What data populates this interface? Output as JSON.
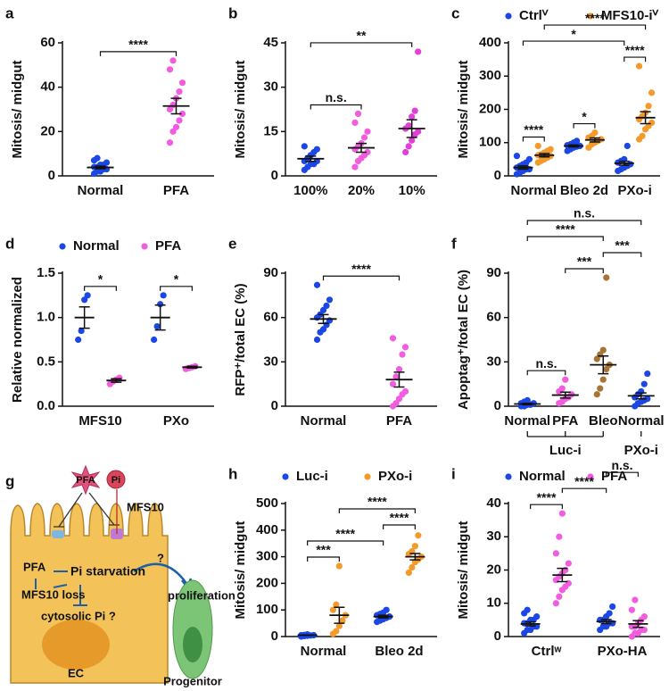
{
  "chart_data": [
    {
      "type": "dotplot",
      "panel": "a",
      "ylabel": "Mitosis/ midgut",
      "categories": [
        "Normal",
        "PFA"
      ],
      "ylim": [
        0,
        60
      ],
      "yticks": [
        0,
        20,
        40,
        60
      ],
      "series": [
        {
          "colors": [
            "#1a47e6",
            "#f25de0"
          ],
          "values": [
            [
              1,
              2,
              2,
              3,
              3,
              4,
              4,
              5,
              5,
              6,
              7,
              8
            ],
            [
              15,
              20,
              22,
              25,
              28,
              30,
              32,
              35,
              38,
              42,
              48,
              52
            ]
          ],
          "means": [
            3.8,
            31.5
          ],
          "sems": [
            0.6,
            3.5
          ]
        }
      ],
      "annotations": [
        {
          "text": "****",
          "from": 0,
          "to": 1
        }
      ]
    },
    {
      "type": "dotplot",
      "panel": "b",
      "ylabel": "Mitosis/ midgut",
      "categories": [
        "100%",
        "20%",
        "10%"
      ],
      "ylim": [
        0,
        45
      ],
      "yticks": [
        0,
        15,
        30,
        45
      ],
      "series": [
        {
          "colors": [
            "#1a47e6",
            "#f25de0",
            "#e23fd6"
          ],
          "values": [
            [
              2,
              3,
              4,
              4,
              5,
              5,
              6,
              7,
              8,
              9,
              10
            ],
            [
              3,
              5,
              6,
              7,
              8,
              9,
              10,
              11,
              13,
              15,
              18,
              21
            ],
            [
              8,
              10,
              12,
              14,
              15,
              16,
              17,
              20,
              22,
              42
            ]
          ],
          "means": [
            5.8,
            9.5,
            16
          ],
          "sems": [
            0.9,
            1.5,
            3
          ]
        }
      ],
      "annotations": [
        {
          "text": "n.s.",
          "from": 0,
          "to": 1
        },
        {
          "text": "**",
          "from": 0,
          "to": 2
        }
      ]
    },
    {
      "type": "dotplot",
      "panel": "c",
      "ylabel": "Mitosis/ midgut",
      "categories": [
        "Normal",
        "Bleo 2d",
        "PXo-i"
      ],
      "ylim": [
        0,
        400
      ],
      "yticks": [
        0,
        100,
        200,
        300,
        400
      ],
      "series": [
        {
          "name": "Ctrlⱽ",
          "color": "#1a47e6",
          "values": [
            [
              5,
              10,
              15,
              20,
              20,
              25,
              30,
              35,
              40,
              50,
              60
            ],
            [
              75,
              80,
              85,
              88,
              90,
              92,
              95,
              100,
              105
            ],
            [
              15,
              20,
              25,
              30,
              35,
              40,
              45,
              50,
              90
            ]
          ],
          "means": [
            25,
            90,
            38
          ],
          "sems": [
            5,
            3,
            6
          ]
        },
        {
          "name": "MFS10-iⱽ",
          "color": "#f39a2a",
          "values": [
            [
              40,
              45,
              50,
              55,
              60,
              62,
              65,
              70,
              75,
              80,
              90
            ],
            [
              85,
              95,
              100,
              105,
              110,
              115,
              120,
              130
            ],
            [
              110,
              120,
              140,
              150,
              160,
              170,
              180,
              190,
              210,
              250,
              330
            ]
          ],
          "means": [
            62,
            108,
            175
          ],
          "sems": [
            5,
            6,
            18
          ]
        }
      ],
      "annotations": [
        {
          "text": "****",
          "from": 0,
          "to": 1
        },
        {
          "text": "*",
          "from": 2,
          "to": 3
        },
        {
          "text": "****",
          "from": 4,
          "to": 5
        },
        {
          "text": "*",
          "from": 0,
          "to": 4
        },
        {
          "text": "****",
          "from": 1,
          "to": 5
        }
      ]
    },
    {
      "type": "dotplot",
      "panel": "d",
      "ylabel": "Relative normalized",
      "categories": [
        "MFS10",
        "PXo"
      ],
      "ylim": [
        0,
        1.5
      ],
      "yticks": [
        {
          "value": 0,
          "label": "0.0"
        },
        0.5,
        {
          "value": 1,
          "label": "1.0"
        },
        1.5
      ],
      "series": [
        {
          "name": "Normal",
          "color": "#1a47e6",
          "values": [
            [
              0.75,
              0.85,
              1.2,
              1.25
            ],
            [
              0.75,
              0.9,
              1.15,
              1.25
            ]
          ],
          "means": [
            1.0,
            1.0
          ],
          "sems": [
            0.12,
            0.14
          ]
        },
        {
          "name": "PFA",
          "color": "#f25de0",
          "values": [
            [
              0.25,
              0.28,
              0.3,
              0.32
            ],
            [
              0.42,
              0.43,
              0.44,
              0.45
            ]
          ],
          "means": [
            0.29,
            0.44
          ],
          "sems": [
            0.02,
            0.01
          ]
        }
      ],
      "annotations": [
        {
          "text": "*",
          "from": 0,
          "to": 1
        },
        {
          "text": "*",
          "from": 2,
          "to": 3
        }
      ]
    },
    {
      "type": "dotplot",
      "panel": "e",
      "ylabel": "RFP⁺/total EC (%)",
      "categories": [
        "Normal",
        "PFA"
      ],
      "ylim": [
        0,
        90
      ],
      "yticks": [
        0,
        30,
        60,
        90
      ],
      "series": [
        {
          "colors": [
            "#1a47e6",
            "#f25de0"
          ],
          "values": [
            [
              45,
              50,
              52,
              55,
              58,
              60,
              62,
              65,
              68,
              72,
              82
            ],
            [
              0,
              2,
              5,
              8,
              10,
              15,
              20,
              25,
              35,
              40,
              46
            ]
          ],
          "means": [
            59,
            18
          ],
          "sems": [
            3,
            5
          ]
        }
      ],
      "annotations": [
        {
          "text": "****",
          "from": 0,
          "to": 1
        }
      ]
    },
    {
      "type": "dotplot",
      "panel": "f",
      "ylabel": "Apoptag⁺/total EC (%)",
      "categories": [
        "Normal",
        "PFA",
        "Bleo",
        "Normal"
      ],
      "ylim": [
        0,
        90
      ],
      "yticks": [
        0,
        30,
        60,
        90
      ],
      "group_labels": [
        {
          "text": "Luc-i",
          "from": 0,
          "to": 2
        },
        {
          "text": "PXo-i",
          "from": 3,
          "to": 3
        }
      ],
      "series": [
        {
          "colors": [
            "#1a47e6",
            "#f25de0",
            "#a87436",
            "#1a47e6"
          ],
          "values": [
            [
              0,
              0,
              1,
              1,
              2,
              2,
              3,
              4
            ],
            [
              2,
              3,
              5,
              6,
              8,
              10,
              12,
              18
            ],
            [
              8,
              12,
              18,
              25,
              28,
              32,
              35,
              38,
              87
            ],
            [
              0,
              2,
              3,
              4,
              5,
              6,
              8,
              10,
              15,
              22
            ]
          ],
          "means": [
            1.5,
            7.5,
            28,
            7
          ],
          "sems": [
            0.5,
            2,
            6,
            2
          ]
        }
      ],
      "annotations": [
        {
          "text": "n.s.",
          "from": 0,
          "to": 1
        },
        {
          "text": "***",
          "from": 1,
          "to": 2
        },
        {
          "text": "***",
          "from": 2,
          "to": 3
        },
        {
          "text": "****",
          "from": 0,
          "to": 2
        },
        {
          "text": "n.s.",
          "from": 0,
          "to": 3
        }
      ]
    },
    {
      "type": "dotplot",
      "panel": "h",
      "ylabel": "Mitosis/ midgut",
      "categories": [
        "Normal",
        "Bleo 2d"
      ],
      "ylim": [
        0,
        500
      ],
      "yticks": [
        0,
        100,
        200,
        300,
        400,
        500
      ],
      "series": [
        {
          "name": "Luc-i",
          "color": "#1a47e6",
          "values": [
            [
              0,
              2,
              3,
              4,
              5,
              5,
              6,
              8
            ],
            [
              55,
              60,
              65,
              70,
              75,
              80,
              85,
              90,
              100
            ]
          ],
          "means": [
            5,
            75
          ],
          "sems": [
            1,
            5
          ]
        },
        {
          "name": "PXo-i",
          "color": "#f39a2a",
          "values": [
            [
              10,
              20,
              40,
              60,
              80,
              100,
              120,
              265
            ],
            [
              240,
              260,
              280,
              290,
              300,
              310,
              320,
              340,
              380
            ]
          ],
          "means": [
            80,
            300
          ],
          "sems": [
            30,
            12
          ]
        }
      ],
      "annotations": [
        {
          "text": "***",
          "from": 0,
          "to": 1
        },
        {
          "text": "****",
          "from": 0,
          "to": 2
        },
        {
          "text": "****",
          "from": 2,
          "to": 3
        },
        {
          "text": "****",
          "from": 1,
          "to": 3
        }
      ]
    },
    {
      "type": "dotplot",
      "panel": "i",
      "ylabel": "Mitosis/ midgut",
      "categories": [
        "Ctrlʷ",
        "PXo-HA"
      ],
      "ylim": [
        0,
        40
      ],
      "yticks": [
        0,
        10,
        20,
        30,
        40
      ],
      "series": [
        {
          "name": "Normal",
          "color": "#1a47e6",
          "values": [
            [
              1,
              2,
              2,
              3,
              3,
              4,
              4,
              5,
              5,
              6,
              7,
              8
            ],
            [
              2,
              3,
              3,
              4,
              4,
              5,
              5,
              6,
              7,
              9
            ]
          ],
          "means": [
            3.8,
            4.5
          ],
          "sems": [
            0.6,
            0.6
          ]
        },
        {
          "name": "PFA",
          "color": "#f25de0",
          "values": [
            [
              10,
              12,
              14,
              15,
              16,
              17,
              18,
              19,
              20,
              22,
              25,
              30,
              37
            ],
            [
              0,
              1,
              1,
              2,
              2,
              3,
              3,
              4,
              5,
              6,
              8,
              11
            ]
          ],
          "means": [
            18.5,
            3.8
          ],
          "sems": [
            2,
            1
          ]
        }
      ],
      "annotations": [
        {
          "text": "****",
          "from": 0,
          "to": 1
        },
        {
          "text": "****",
          "from": 1,
          "to": 2
        },
        {
          "text": "n.s.",
          "from": 2,
          "to": 3
        }
      ]
    }
  ],
  "diagram": {
    "panel": "g",
    "labels": [
      "PFA",
      "Pi",
      "MFS10",
      "PFA",
      "Pi starvation",
      "MFS10 loss",
      "cytosolic Pi ?",
      "?",
      "proliferation",
      "EC",
      "Progenitor"
    ]
  }
}
